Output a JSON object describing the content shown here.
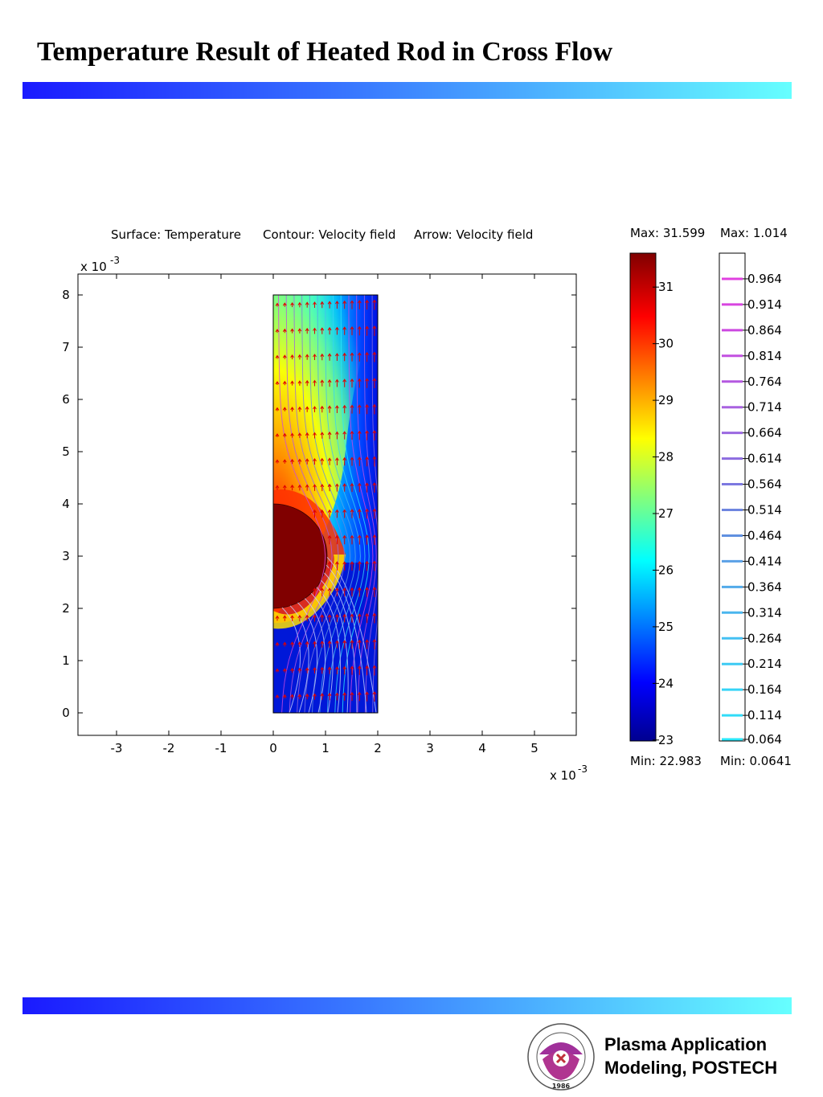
{
  "slide": {
    "title": "Temperature Result of Heated Rod in Cross Flow",
    "footer_line1": "Plasma Application",
    "footer_line2": "Modeling, POSTECH",
    "logo_text": "POHANG UNIVERSITY OF SCIENCE AND TECHNOLOGY",
    "logo_year": "1986",
    "accent_gradient": [
      "#1a1aff",
      "#66ffff"
    ]
  },
  "chart_data": {
    "type": "heatmap",
    "plot_header": {
      "surface": "Surface: Temperature",
      "contour": "Contour: Velocity field",
      "arrow": "Arrow: Velocity field"
    },
    "x_ticks": [
      "-3",
      "-2",
      "-1",
      "0",
      "1",
      "2",
      "3",
      "4",
      "5"
    ],
    "y_ticks": [
      "0",
      "1",
      "2",
      "3",
      "4",
      "5",
      "6",
      "7",
      "8"
    ],
    "x_multiplier": "x 10",
    "y_multiplier": "x 10",
    "multiplier_exponent": "-3",
    "xlim": [
      -3.75,
      5.8
    ],
    "ylim": [
      -0.42,
      8.4
    ],
    "domain": {
      "x": [
        0,
        2
      ],
      "y": [
        0,
        8
      ]
    },
    "rod": {
      "center": [
        0,
        3
      ],
      "radius": 1.0
    },
    "temperature_scale": {
      "max_label": "Max: 31.599",
      "min_label": "Min: 22.983",
      "min": 22.983,
      "max": 31.599,
      "ticks": [
        "31",
        "30",
        "29",
        "28",
        "27",
        "26",
        "25",
        "24",
        "23"
      ],
      "colormap": [
        "#00008f",
        "#0000ff",
        "#00ffff",
        "#ffff00",
        "#ff0000",
        "#800000"
      ]
    },
    "velocity_scale": {
      "max_label": "Max: 1.014",
      "min_label": "Min: 0.0641",
      "min": 0.0641,
      "max": 1.014,
      "levels": [
        "0.964",
        "0.914",
        "0.864",
        "0.814",
        "0.764",
        "0.714",
        "0.664",
        "0.614",
        "0.564",
        "0.514",
        "0.464",
        "0.414",
        "0.364",
        "0.314",
        "0.264",
        "0.214",
        "0.164",
        "0.114",
        "0.064"
      ],
      "colors": [
        "#e040e0",
        "#d845e0",
        "#cc48e0",
        "#c250e0",
        "#b458e0",
        "#a862e0",
        "#9a68e0",
        "#8c6ce0",
        "#7c78e0",
        "#6e86e0",
        "#6090e0",
        "#5aa0e6",
        "#52aaea",
        "#4ab6ee",
        "#44c0f2",
        "#3ccaf4",
        "#36d4f6",
        "#30dcf8",
        "#2ae8fa"
      ]
    }
  }
}
